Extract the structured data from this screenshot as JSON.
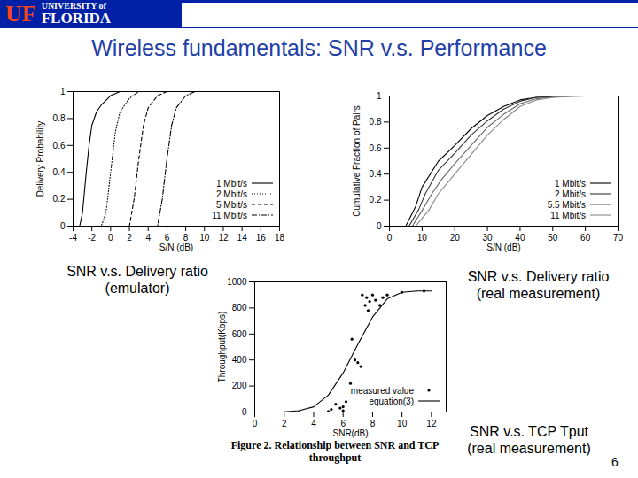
{
  "slide": {
    "logo": [
      "UF",
      "UNIVERSITY of",
      "FLORIDA"
    ],
    "title": "Wireless fundamentals: SNR v.s. Performance",
    "page": "6"
  },
  "chart_data": [
    {
      "type": "line",
      "caption": "SNR v.s. Delivery ratio\n(emulator)",
      "x_label": "S/N (dB)",
      "y_label": "Delivery Probability",
      "xlim": [
        -4,
        18
      ],
      "xticks": [
        -4,
        -2,
        0,
        2,
        4,
        6,
        8,
        10,
        12,
        14,
        16,
        18
      ],
      "ylim": [
        0,
        1
      ],
      "yticks": [
        0,
        0.2,
        0.4,
        0.6,
        0.8,
        1
      ],
      "grid": false,
      "legend": "bottom-right",
      "series": [
        {
          "name": "1 Mbit/s",
          "color": "#000000",
          "line_style": "solid",
          "x": [
            -4,
            -3.3,
            -3,
            -2.6,
            -2.3,
            -2,
            -1.5,
            -1,
            0,
            1,
            18
          ],
          "values": [
            0,
            0,
            0.1,
            0.4,
            0.6,
            0.75,
            0.85,
            0.9,
            0.97,
            1,
            1
          ]
        },
        {
          "name": "2 Mbit/s",
          "color": "#000000",
          "line_style": "dotted",
          "x": [
            -4,
            -1,
            -0.5,
            0,
            0.5,
            1,
            2,
            3,
            18
          ],
          "values": [
            0,
            0,
            0.1,
            0.4,
            0.7,
            0.85,
            0.95,
            1,
            1
          ]
        },
        {
          "name": "5 Mbit/s",
          "color": "#000000",
          "line_style": "dashed",
          "x": [
            -4,
            2,
            2.5,
            3,
            3.5,
            4,
            5,
            6,
            18
          ],
          "values": [
            0,
            0,
            0.2,
            0.5,
            0.75,
            0.88,
            0.97,
            1,
            1
          ]
        },
        {
          "name": "11 Mbit/s",
          "color": "#000000",
          "line_style": "dashdot",
          "x": [
            -4,
            5,
            5.5,
            6,
            6.5,
            7,
            8,
            9,
            18
          ],
          "values": [
            0,
            0,
            0.2,
            0.5,
            0.75,
            0.88,
            0.97,
            1,
            1
          ]
        }
      ]
    },
    {
      "type": "line",
      "caption": "SNR v.s. Delivery ratio\n(real measurement)",
      "x_label": "S/N (dB)",
      "y_label": "Cumulative Fraction of Pairs",
      "xlim": [
        0,
        70
      ],
      "xticks": [
        0,
        10,
        20,
        30,
        40,
        50,
        60,
        70
      ],
      "ylim": [
        0,
        1
      ],
      "yticks": [
        0,
        0.2,
        0.4,
        0.6,
        0.8,
        1
      ],
      "grid": false,
      "legend": "bottom-right",
      "series": [
        {
          "name": "1 Mbit/s",
          "color": "#000000",
          "line_style": "solid",
          "x": [
            5,
            8,
            10,
            15,
            20,
            25,
            30,
            35,
            40,
            45,
            55,
            70
          ],
          "values": [
            0,
            0.15,
            0.3,
            0.5,
            0.62,
            0.75,
            0.85,
            0.92,
            0.97,
            0.99,
            1,
            1
          ]
        },
        {
          "name": "2 Mbit/s",
          "color": "#333333",
          "line_style": "solid",
          "x": [
            6,
            9,
            11,
            15,
            20,
            25,
            30,
            35,
            40,
            45,
            55,
            70
          ],
          "values": [
            0,
            0.13,
            0.25,
            0.43,
            0.56,
            0.7,
            0.81,
            0.9,
            0.96,
            0.99,
            1,
            1
          ]
        },
        {
          "name": "5.5 Mbit/s",
          "color": "#666666",
          "line_style": "solid",
          "x": [
            7,
            10,
            13,
            16,
            20,
            25,
            30,
            35,
            40,
            45,
            55,
            70
          ],
          "values": [
            0,
            0.12,
            0.25,
            0.36,
            0.48,
            0.62,
            0.76,
            0.86,
            0.94,
            0.98,
            1,
            1
          ]
        },
        {
          "name": "11 Mbit/s",
          "color": "#888888",
          "line_style": "solid",
          "x": [
            8,
            12,
            15,
            20,
            25,
            30,
            35,
            40,
            45,
            50,
            60,
            70
          ],
          "values": [
            0,
            0.12,
            0.25,
            0.4,
            0.55,
            0.7,
            0.82,
            0.92,
            0.97,
            0.99,
            1,
            1
          ]
        }
      ]
    },
    {
      "type": "scatter",
      "caption": "SNR v.s. TCP Tput\n(real measurement)",
      "figure_caption": "Figure 2. Relationship between SNR and TCP throughput",
      "x_label": "SNR(dB)",
      "y_label": "Throughput(Kbps)",
      "xlim": [
        0,
        13
      ],
      "xticks": [
        0,
        2,
        4,
        6,
        8,
        10,
        12
      ],
      "ylim": [
        0,
        1000
      ],
      "yticks": [
        0,
        200,
        400,
        600,
        800,
        1000
      ],
      "grid": false,
      "legend": "bottom-right",
      "series": [
        {
          "name": "measured value",
          "type": "scatter",
          "marker": "dot",
          "color": "#000000",
          "x": [
            3,
            5,
            5.2,
            5.5,
            5.8,
            6,
            6,
            6.2,
            6.5,
            6.6,
            6.8,
            7,
            7.2,
            7.3,
            7.5,
            7.6,
            7.7,
            7.8,
            8,
            8.2,
            8.5,
            8.7,
            9,
            10,
            11.5
          ],
          "values": [
            0,
            5,
            20,
            60,
            30,
            10,
            40,
            80,
            220,
            560,
            400,
            380,
            350,
            900,
            820,
            880,
            780,
            850,
            900,
            860,
            820,
            880,
            900,
            920,
            930
          ]
        },
        {
          "name": "equation(3)",
          "type": "line",
          "line_style": "solid",
          "color": "#000000",
          "x": [
            0,
            2,
            3,
            4,
            5,
            6,
            7,
            8,
            9,
            10,
            11,
            12
          ],
          "values": [
            0,
            2,
            10,
            40,
            130,
            300,
            520,
            730,
            870,
            920,
            930,
            930
          ]
        }
      ]
    }
  ]
}
